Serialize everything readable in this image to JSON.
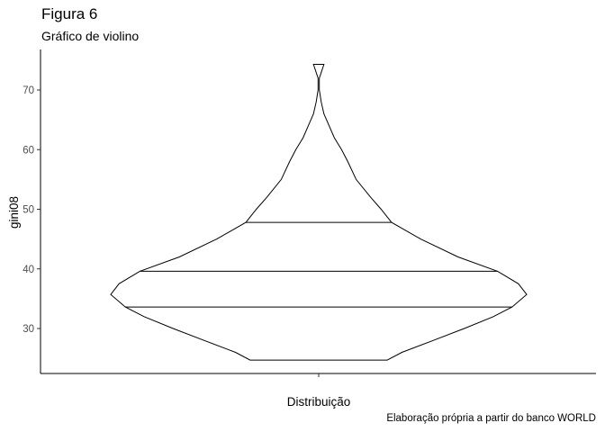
{
  "chart_data": {
    "type": "violin",
    "title": "Figura 6",
    "subtitle": "Gráfico de violino",
    "caption": "Elaboração própria a partir do banco WORLD",
    "xlabel": "Distribuição",
    "ylabel": "gini08",
    "ylim": [
      22,
      77
    ],
    "yticks": [
      30,
      40,
      50,
      60,
      70
    ],
    "grid": false,
    "series": [
      {
        "category": "",
        "min": 24.7,
        "max": 74.3,
        "quantiles": [
          {
            "q": 0.25,
            "value": 33.6
          },
          {
            "q": 0.5,
            "value": 39.6
          },
          {
            "q": 0.75,
            "value": 47.8
          }
        ],
        "density_profile": [
          [
            24.7,
            0.33
          ],
          [
            26,
            0.4
          ],
          [
            28,
            0.55
          ],
          [
            30,
            0.7
          ],
          [
            32,
            0.84
          ],
          [
            33.6,
            0.93
          ],
          [
            35.7,
            1.0
          ],
          [
            37.5,
            0.96
          ],
          [
            39.6,
            0.86
          ],
          [
            42,
            0.67
          ],
          [
            45,
            0.49
          ],
          [
            47.8,
            0.35
          ],
          [
            50,
            0.3
          ],
          [
            52,
            0.25
          ],
          [
            55,
            0.18
          ],
          [
            58,
            0.14
          ],
          [
            60,
            0.11
          ],
          [
            62,
            0.075
          ],
          [
            64,
            0.05
          ],
          [
            66,
            0.025
          ],
          [
            68,
            0.012
          ],
          [
            70,
            0.003
          ],
          [
            72,
            0.003
          ],
          [
            74.3,
            0.025
          ]
        ]
      }
    ]
  }
}
